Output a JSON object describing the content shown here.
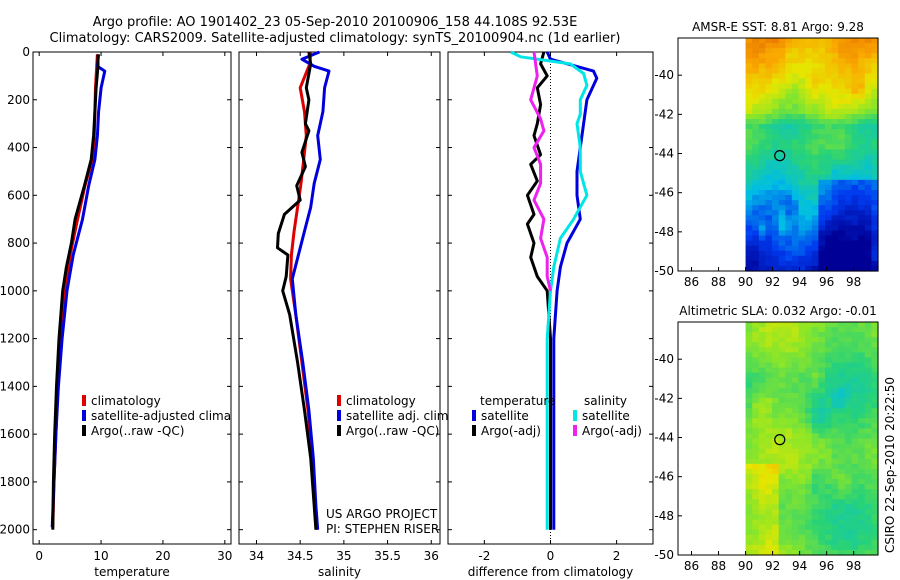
{
  "header": {
    "line1": "Argo profile: AO 1901402_23 05-Sep-2010 20100906_158 44.108S 92.53E",
    "line2": "Climatology: CARS2009. Satellite-adjusted climatology: synTS_20100904.nc (1d earlier)"
  },
  "colors": {
    "climatology": "#dd0000",
    "satellite": "#0000dd",
    "argo": "#000000",
    "sat_sal": "#00e5e5",
    "argo_sal": "#ee22ee"
  },
  "credit": "CSIRO 22-Sep-2010 20:22:50",
  "chart_data": [
    {
      "type": "line",
      "xlabel": "temperature",
      "xlim": [
        -1,
        31
      ],
      "ylim": [
        2060,
        0
      ],
      "xticks": [
        0,
        10,
        20,
        30
      ],
      "yticks": [
        0,
        200,
        400,
        600,
        800,
        1000,
        1200,
        1400,
        1600,
        1800,
        2000
      ],
      "legend": {
        "position": "bottom-right",
        "entries": [
          "climatology",
          "satellite-adjusted climatology",
          "Argo(..raw -QC)"
        ]
      },
      "series": [
        {
          "name": "climatology",
          "color": "#dd0000",
          "points": [
            [
              9.4,
              10
            ],
            [
              9.3,
              60
            ],
            [
              9.1,
              150
            ],
            [
              9.0,
              250
            ],
            [
              8.9,
              350
            ],
            [
              8.6,
              450
            ],
            [
              7.4,
              560
            ],
            [
              6.2,
              700
            ],
            [
              5.0,
              850
            ],
            [
              4.2,
              1000
            ],
            [
              3.5,
              1200
            ],
            [
              3.0,
              1400
            ],
            [
              2.7,
              1600
            ],
            [
              2.4,
              1800
            ],
            [
              2.2,
              1990
            ]
          ]
        },
        {
          "name": "satellite-adjusted climatology",
          "color": "#0000dd",
          "points": [
            [
              9.6,
              10
            ],
            [
              9.4,
              60
            ],
            [
              10.6,
              80
            ],
            [
              10.0,
              150
            ],
            [
              9.6,
              250
            ],
            [
              9.4,
              350
            ],
            [
              9.0,
              450
            ],
            [
              8.0,
              560
            ],
            [
              7.0,
              700
            ],
            [
              5.5,
              850
            ],
            [
              4.5,
              1000
            ],
            [
              3.7,
              1200
            ],
            [
              3.1,
              1400
            ],
            [
              2.7,
              1600
            ],
            [
              2.4,
              1800
            ],
            [
              2.1,
              1990
            ]
          ]
        },
        {
          "name": "Argo(..raw -QC)",
          "color": "#000000",
          "points": [
            [
              9.5,
              10
            ],
            [
              9.5,
              60
            ],
            [
              9.2,
              150
            ],
            [
              9.0,
              250
            ],
            [
              8.8,
              350
            ],
            [
              8.4,
              450
            ],
            [
              7.3,
              560
            ],
            [
              5.8,
              700
            ],
            [
              5.2,
              800
            ],
            [
              4.4,
              900
            ],
            [
              3.8,
              1000
            ],
            [
              3.2,
              1200
            ],
            [
              2.8,
              1400
            ],
            [
              2.5,
              1600
            ],
            [
              2.3,
              1800
            ],
            [
              2.2,
              2000
            ]
          ]
        }
      ]
    },
    {
      "type": "line",
      "xlabel": "salinity",
      "xlim": [
        33.8,
        36.1
      ],
      "ylim": [
        2060,
        0
      ],
      "xticks": [
        34,
        34.5,
        35,
        35.5,
        36
      ],
      "legend": {
        "position": "bottom-right",
        "entries": [
          "climatology",
          "satellite adj. clim.",
          "Argo(..raw -QC)"
        ]
      },
      "annotations": [
        "US ARGO PROJECT",
        "PI: STEPHEN RISER"
      ],
      "series": [
        {
          "name": "climatology",
          "color": "#dd0000",
          "points": [
            [
              34.62,
              0
            ],
            [
              34.61,
              50
            ],
            [
              34.5,
              150
            ],
            [
              34.55,
              250
            ],
            [
              34.57,
              350
            ],
            [
              34.54,
              450
            ],
            [
              34.51,
              550
            ],
            [
              34.47,
              650
            ],
            [
              34.43,
              750
            ],
            [
              34.4,
              850
            ],
            [
              34.39,
              950
            ],
            [
              34.45,
              1100
            ],
            [
              34.52,
              1300
            ],
            [
              34.59,
              1500
            ],
            [
              34.64,
              1700
            ],
            [
              34.67,
              1900
            ],
            [
              34.69,
              2000
            ]
          ]
        },
        {
          "name": "satellite adj. clim.",
          "color": "#0000dd",
          "points": [
            [
              34.72,
              0
            ],
            [
              34.52,
              30
            ],
            [
              34.66,
              60
            ],
            [
              34.83,
              80
            ],
            [
              34.78,
              150
            ],
            [
              34.76,
              250
            ],
            [
              34.7,
              350
            ],
            [
              34.73,
              450
            ],
            [
              34.66,
              550
            ],
            [
              34.62,
              650
            ],
            [
              34.55,
              750
            ],
            [
              34.48,
              850
            ],
            [
              34.41,
              950
            ],
            [
              34.45,
              1100
            ],
            [
              34.53,
              1300
            ],
            [
              34.6,
              1500
            ],
            [
              34.65,
              1700
            ],
            [
              34.68,
              1900
            ],
            [
              34.7,
              2000
            ]
          ]
        },
        {
          "name": "Argo(..raw -QC)",
          "color": "#000000",
          "points": [
            [
              34.6,
              0
            ],
            [
              34.62,
              50
            ],
            [
              34.57,
              150
            ],
            [
              34.6,
              200
            ],
            [
              34.56,
              300
            ],
            [
              34.6,
              330
            ],
            [
              34.52,
              420
            ],
            [
              34.56,
              480
            ],
            [
              34.46,
              560
            ],
            [
              34.5,
              620
            ],
            [
              34.32,
              680
            ],
            [
              34.25,
              760
            ],
            [
              34.24,
              820
            ],
            [
              34.36,
              850
            ],
            [
              34.34,
              940
            ],
            [
              34.3,
              1000
            ],
            [
              34.38,
              1100
            ],
            [
              34.47,
              1300
            ],
            [
              34.55,
              1500
            ],
            [
              34.62,
              1700
            ],
            [
              34.66,
              1900
            ],
            [
              34.68,
              2000
            ]
          ]
        }
      ]
    },
    {
      "type": "line",
      "xlabel": "difference from climatology",
      "xlim": [
        -3.1,
        3.1
      ],
      "ylim": [
        2060,
        0
      ],
      "xticks": [
        -2,
        0,
        2
      ],
      "legend": {
        "position": "bottom-left",
        "title_temperature": "temperature",
        "title_salinity": "salinity",
        "entries": [
          "satellite",
          "Argo(-adj)",
          "satellite",
          "Argo(-adj)"
        ]
      },
      "series": [
        {
          "name": "temperature satellite",
          "color": "#0000dd",
          "points": [
            [
              -0.1,
              0
            ],
            [
              0.0,
              30
            ],
            [
              1.3,
              80
            ],
            [
              1.4,
              110
            ],
            [
              1.1,
              200
            ],
            [
              1.0,
              300
            ],
            [
              0.9,
              400
            ],
            [
              0.8,
              500
            ],
            [
              0.8,
              600
            ],
            [
              0.9,
              700
            ],
            [
              0.5,
              800
            ],
            [
              0.3,
              900
            ],
            [
              0.2,
              1000
            ],
            [
              0.1,
              1200
            ],
            [
              0.1,
              1400
            ],
            [
              0.1,
              1600
            ],
            [
              0.1,
              1800
            ],
            [
              0.1,
              2000
            ]
          ]
        },
        {
          "name": "temperature Argo(-adj)",
          "color": "#000000",
          "points": [
            [
              -0.2,
              0
            ],
            [
              -0.3,
              50
            ],
            [
              -0.1,
              100
            ],
            [
              -0.4,
              150
            ],
            [
              -0.3,
              220
            ],
            [
              -0.4,
              300
            ],
            [
              -0.5,
              350
            ],
            [
              -0.3,
              430
            ],
            [
              -0.6,
              470
            ],
            [
              -0.4,
              540
            ],
            [
              -0.7,
              600
            ],
            [
              -0.5,
              680
            ],
            [
              -0.7,
              720
            ],
            [
              -0.5,
              800
            ],
            [
              -0.6,
              860
            ],
            [
              -0.4,
              940
            ],
            [
              -0.1,
              1000
            ],
            [
              0.0,
              1200
            ],
            [
              0.0,
              1400
            ],
            [
              0.0,
              1600
            ],
            [
              0.0,
              1800
            ],
            [
              0.0,
              2000
            ]
          ]
        },
        {
          "name": "salinity satellite",
          "color": "#00e5e5",
          "points": [
            [
              -1.2,
              0
            ],
            [
              -0.9,
              20
            ],
            [
              0.6,
              50
            ],
            [
              1.0,
              90
            ],
            [
              1.1,
              140
            ],
            [
              0.9,
              200
            ],
            [
              0.9,
              260
            ],
            [
              0.8,
              300
            ],
            [
              0.9,
              400
            ],
            [
              0.9,
              500
            ],
            [
              1.1,
              600
            ],
            [
              0.7,
              700
            ],
            [
              0.3,
              780
            ],
            [
              0.1,
              900
            ],
            [
              0.0,
              1000
            ],
            [
              -0.1,
              1200
            ],
            [
              -0.1,
              1400
            ],
            [
              -0.1,
              1600
            ],
            [
              -0.1,
              1800
            ],
            [
              -0.1,
              2000
            ]
          ]
        },
        {
          "name": "salinity Argo(-adj)",
          "color": "#ee22ee",
          "points": [
            [
              -0.5,
              0
            ],
            [
              -0.4,
              100
            ],
            [
              -0.6,
              200
            ],
            [
              -0.3,
              280
            ],
            [
              -0.2,
              330
            ],
            [
              -0.5,
              400
            ],
            [
              -0.3,
              470
            ],
            [
              -0.3,
              550
            ],
            [
              -0.5,
              620
            ],
            [
              -0.2,
              700
            ],
            [
              -0.3,
              780
            ],
            [
              -0.1,
              860
            ],
            [
              -0.1,
              940
            ],
            [
              0.0,
              1000
            ]
          ]
        }
      ]
    },
    {
      "type": "heatmap",
      "title": "AMSR-E SST: 8.81  Argo: 9.28",
      "xlim": [
        85,
        99.8
      ],
      "ylim": [
        -50,
        -38.1
      ],
      "xticks": [
        86,
        88,
        90,
        92,
        94,
        96,
        98
      ],
      "yticks": [
        -40,
        -42,
        -44,
        -46,
        -48,
        -50
      ],
      "data_extent": [
        90,
        99.8
      ],
      "marker": [
        92.53,
        -44.108
      ]
    },
    {
      "type": "heatmap",
      "title": "Altimetric SLA: 0.032  Argo: -0.01",
      "xlim": [
        85,
        99.8
      ],
      "ylim": [
        -50,
        -38.1
      ],
      "xticks": [
        86,
        88,
        90,
        92,
        94,
        96,
        98
      ],
      "yticks": [
        -40,
        -42,
        -44,
        -46,
        -48,
        -50
      ],
      "data_extent": [
        90,
        99.8
      ],
      "marker": [
        92.53,
        -44.108
      ]
    }
  ]
}
